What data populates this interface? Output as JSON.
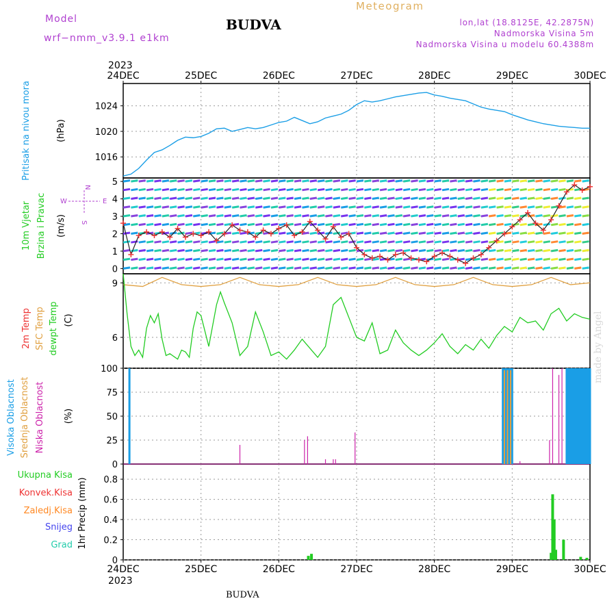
{
  "header": {
    "model_label": "Model",
    "model_value": "wrf−nmm_v3.9.1 e1km",
    "title": "BUDVA",
    "meteogram": "Meteogram",
    "lonlat": "lon,lat (18.8125E, 42.2875N)",
    "elevation": "Nadmorska Visina 5m",
    "model_elevation": "Nadmorska Visina u modelu 60.4388m"
  },
  "footer": {
    "label": "BUDVA"
  },
  "watermark": {
    "text": "made by Angel"
  },
  "time_axis": {
    "year_top": "2023",
    "year_bottom": "2023",
    "ticks": [
      "24DEC",
      "25DEC",
      "26DEC",
      "27DEC",
      "28DEC",
      "29DEC",
      "30DEC"
    ]
  },
  "panel_labels": {
    "pressure": [
      "Pritisak na nivou mora",
      "(hPa)"
    ],
    "wind": [
      "10m Vjetar",
      "Brzina i Pravac",
      "(m/s)"
    ],
    "compass": {
      "w": "W",
      "e": "E",
      "n": "N",
      "s": "S"
    },
    "temp": [
      "2m Temp",
      "SFC Temp",
      "dewpt Temp",
      "(C)"
    ],
    "cloud": [
      "Visoka Oblacnost",
      "Srednja Oblacnost",
      "Niska Oblacnost",
      "(%)"
    ],
    "precip_unit": "1hr Precip (mm)",
    "precip_legend": [
      "Ukupna Kisa",
      "Konvek.Kisa",
      "Zaledj.Kisa",
      "Snijeg",
      "Grad"
    ]
  },
  "colors": {
    "pressure": "#1a9ee6",
    "dewpt": "#22cc22",
    "sfc_temp": "#e0a040",
    "two_m_temp": "#ee3333",
    "cloud_high": "#1a9ee6",
    "cloud_mid": "#e0a040",
    "cloud_low": "#cc22aa",
    "precip_total": "#22cc22",
    "precip_conv": "#ee3333",
    "precip_frz": "#ff8822",
    "precip_snow": "#4444ee",
    "precip_hail": "#22ccaa",
    "model_text": "#b040d0"
  },
  "chart_data": [
    {
      "type": "line",
      "panel": "pressure",
      "ylabel": "(hPa)",
      "yticks": [
        1016,
        1020,
        1024
      ],
      "ylim": [
        1012.7,
        1027.5
      ],
      "x_unit": "days since 24DEC 00",
      "series": [
        {
          "name": "Pritisak na nivou mora",
          "x": [
            0,
            0.1,
            0.2,
            0.3,
            0.4,
            0.5,
            0.6,
            0.7,
            0.8,
            0.9,
            1.0,
            1.1,
            1.2,
            1.3,
            1.4,
            1.5,
            1.6,
            1.7,
            1.8,
            1.9,
            2.0,
            2.1,
            2.2,
            2.3,
            2.4,
            2.5,
            2.6,
            2.7,
            2.8,
            2.9,
            3.0,
            3.1,
            3.2,
            3.3,
            3.4,
            3.5,
            3.6,
            3.7,
            3.8,
            3.9,
            4.0,
            4.1,
            4.2,
            4.3,
            4.4,
            4.5,
            4.6,
            4.7,
            4.8,
            4.9,
            5.0,
            5.1,
            5.2,
            5.3,
            5.4,
            5.5,
            5.6,
            5.7,
            5.8,
            5.9,
            6.0
          ],
          "y": [
            1013.0,
            1013.3,
            1014.2,
            1015.5,
            1016.7,
            1017.1,
            1017.8,
            1018.6,
            1019.1,
            1019.0,
            1019.2,
            1019.7,
            1020.4,
            1020.5,
            1020.0,
            1020.3,
            1020.6,
            1020.4,
            1020.6,
            1021.0,
            1021.4,
            1021.6,
            1022.2,
            1021.7,
            1021.2,
            1021.5,
            1022.1,
            1022.4,
            1022.7,
            1023.3,
            1024.2,
            1024.8,
            1024.6,
            1024.8,
            1025.1,
            1025.4,
            1025.6,
            1025.8,
            1026.0,
            1026.1,
            1025.7,
            1025.5,
            1025.2,
            1025.0,
            1024.8,
            1024.3,
            1023.8,
            1023.5,
            1023.3,
            1023.1,
            1022.6,
            1022.2,
            1021.8,
            1021.5,
            1021.2,
            1021.0,
            1020.8,
            1020.7,
            1020.6,
            1020.5,
            1020.5
          ]
        }
      ]
    },
    {
      "type": "line",
      "panel": "wind",
      "ylabel": "(m/s)",
      "yticks": [
        0,
        1,
        2,
        3,
        4,
        5
      ],
      "ylim": [
        -0.3,
        5.2
      ],
      "x_unit": "days since 24DEC 00",
      "series": [
        {
          "name": "10m Vjetar",
          "x": [
            0,
            0.1,
            0.2,
            0.3,
            0.4,
            0.5,
            0.6,
            0.7,
            0.8,
            0.9,
            1.0,
            1.1,
            1.2,
            1.3,
            1.4,
            1.5,
            1.6,
            1.7,
            1.8,
            1.9,
            2.0,
            2.1,
            2.2,
            2.3,
            2.4,
            2.5,
            2.6,
            2.7,
            2.8,
            2.9,
            3.0,
            3.1,
            3.2,
            3.3,
            3.4,
            3.5,
            3.6,
            3.7,
            3.8,
            3.9,
            4.0,
            4.1,
            4.2,
            4.3,
            4.4,
            4.5,
            4.6,
            4.7,
            4.8,
            4.9,
            5.0,
            5.1,
            5.2,
            5.3,
            5.4,
            5.5,
            5.6,
            5.7,
            5.8,
            5.9,
            6.0
          ],
          "y": [
            2.6,
            0.8,
            1.9,
            2.1,
            1.9,
            2.1,
            1.8,
            2.3,
            1.8,
            2.0,
            1.9,
            2.1,
            1.6,
            2.0,
            2.5,
            2.2,
            2.1,
            1.8,
            2.2,
            2.0,
            2.3,
            2.5,
            1.9,
            2.1,
            2.7,
            2.2,
            1.7,
            2.4,
            1.8,
            2.0,
            1.2,
            0.8,
            0.6,
            0.7,
            0.5,
            0.8,
            0.9,
            0.6,
            0.5,
            0.4,
            0.7,
            0.9,
            0.7,
            0.5,
            0.3,
            0.6,
            0.8,
            1.2,
            1.6,
            2.0,
            2.4,
            2.8,
            3.2,
            2.6,
            2.2,
            2.8,
            3.6,
            4.4,
            4.8,
            4.5,
            4.7
          ]
        }
      ]
    },
    {
      "type": "line",
      "panel": "temperature",
      "ylabel": "(C)",
      "yticks": [
        6,
        9
      ],
      "ylim": [
        4.3,
        9.5
      ],
      "x_unit": "days since 24DEC 00",
      "series": [
        {
          "name": "SFC Temp",
          "x": [
            0,
            0.25,
            0.5,
            0.75,
            1.0,
            1.25,
            1.5,
            1.75,
            2.0,
            2.25,
            2.5,
            2.75,
            3.0,
            3.25,
            3.5,
            3.75,
            4.0,
            4.25,
            4.5,
            4.75,
            5.0,
            5.25,
            5.5,
            5.75,
            6.0
          ],
          "y": [
            8.9,
            8.8,
            9.3,
            8.9,
            8.8,
            8.9,
            9.3,
            8.9,
            8.8,
            8.9,
            9.3,
            8.9,
            8.8,
            8.9,
            9.3,
            8.9,
            8.8,
            8.9,
            9.3,
            8.9,
            8.8,
            8.9,
            9.3,
            8.9,
            9.0
          ]
        },
        {
          "name": "dewpt Temp",
          "x": [
            0,
            0.05,
            0.1,
            0.15,
            0.2,
            0.25,
            0.3,
            0.35,
            0.4,
            0.45,
            0.5,
            0.55,
            0.6,
            0.7,
            0.75,
            0.8,
            0.85,
            0.9,
            0.95,
            1.0,
            1.1,
            1.2,
            1.25,
            1.3,
            1.4,
            1.5,
            1.6,
            1.7,
            1.8,
            1.9,
            2.0,
            2.1,
            2.2,
            2.3,
            2.4,
            2.5,
            2.6,
            2.7,
            2.8,
            2.9,
            3.0,
            3.1,
            3.2,
            3.3,
            3.4,
            3.5,
            3.6,
            3.7,
            3.8,
            3.9,
            4.0,
            4.1,
            4.2,
            4.3,
            4.4,
            4.5,
            4.6,
            4.7,
            4.8,
            4.9,
            5.0,
            5.1,
            5.2,
            5.3,
            5.4,
            5.5,
            5.6,
            5.7,
            5.8,
            5.9,
            6.0
          ],
          "y": [
            9.5,
            7.3,
            5.5,
            5.0,
            5.3,
            4.9,
            6.5,
            7.2,
            6.8,
            7.3,
            5.9,
            5.0,
            5.1,
            4.8,
            5.3,
            5.2,
            4.9,
            6.5,
            7.4,
            7.2,
            5.5,
            7.8,
            8.5,
            7.9,
            6.8,
            5.0,
            5.5,
            7.4,
            6.3,
            5.0,
            5.2,
            4.8,
            5.3,
            5.9,
            5.4,
            4.9,
            5.5,
            7.8,
            8.2,
            7.1,
            6.0,
            5.8,
            6.8,
            5.1,
            5.3,
            6.4,
            5.7,
            5.3,
            5.0,
            5.3,
            5.7,
            6.2,
            5.5,
            5.1,
            5.6,
            5.3,
            5.9,
            5.4,
            6.1,
            6.6,
            6.3,
            7.1,
            6.8,
            6.9,
            6.4,
            7.3,
            7.6,
            6.9,
            7.3,
            7.1,
            7.0
          ]
        }
      ]
    },
    {
      "type": "bar",
      "panel": "cloud",
      "ylabel": "(%)",
      "yticks": [
        0,
        25,
        50,
        75,
        100
      ],
      "ylim": [
        0,
        100
      ],
      "x_unit": "days since 24DEC 00",
      "series": [
        {
          "name": "Visoka Oblacnost",
          "x": [
            0.08,
            4.88,
            4.9,
            4.92,
            4.94,
            4.96,
            4.98,
            5.0,
            5.7,
            5.72,
            5.74,
            5.76,
            5.78,
            5.8,
            5.82,
            5.84,
            5.86,
            5.88,
            5.9,
            5.92,
            5.94,
            5.96,
            5.98,
            6.0
          ],
          "values": [
            100,
            100,
            100,
            100,
            100,
            100,
            100,
            100,
            100,
            100,
            100,
            100,
            100,
            100,
            100,
            100,
            100,
            100,
            100,
            100,
            100,
            100,
            100,
            100
          ]
        },
        {
          "name": "Srednja Oblacnost",
          "x": [
            4.9,
            4.94,
            4.98
          ],
          "values": [
            98,
            98,
            98
          ]
        },
        {
          "name": "Niska Oblacnost",
          "x": [
            1.5,
            2.33,
            2.37,
            2.6,
            2.7,
            2.73,
            2.98,
            5.1,
            5.48,
            5.52,
            5.6,
            5.64
          ],
          "values": [
            20,
            25,
            29,
            5,
            5,
            5,
            33,
            3,
            25,
            100,
            93,
            100
          ]
        }
      ]
    },
    {
      "type": "bar",
      "panel": "precip",
      "ylabel": "1hr Precip (mm)",
      "yticks": [
        0,
        0.2,
        0.4,
        0.6,
        0.8
      ],
      "ylim": [
        0,
        0.95
      ],
      "x_unit": "days since 24DEC 00",
      "series": [
        {
          "name": "Ukupna Kisa",
          "x": [
            2.38,
            2.42,
            5.5,
            5.52,
            5.54,
            5.56,
            5.66,
            5.88,
            5.96
          ],
          "values": [
            0.04,
            0.06,
            0.07,
            0.65,
            0.4,
            0.1,
            0.2,
            0.03,
            0.02
          ]
        }
      ]
    }
  ]
}
